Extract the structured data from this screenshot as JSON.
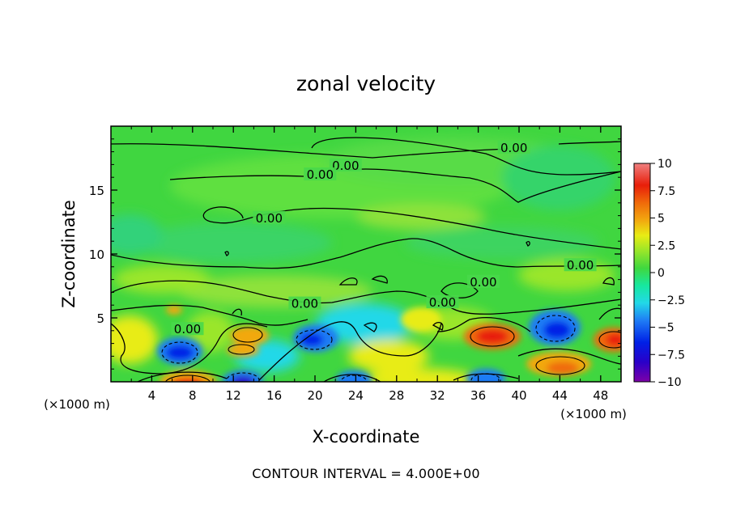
{
  "chart_data": {
    "type": "heatmap",
    "title": "zonal velocity",
    "xlabel": "X-coordinate",
    "ylabel": "Z-coordinate",
    "x_unit_label": "(×1000 m)",
    "x_unit_label_right": "(×1000 m)",
    "xlim": [
      0,
      50
    ],
    "ylim": [
      0,
      20
    ],
    "x_ticks": [
      "4",
      "8",
      "12",
      "16",
      "20",
      "24",
      "28",
      "32",
      "36",
      "40",
      "44",
      "48"
    ],
    "x_tick_values": [
      4,
      8,
      12,
      16,
      20,
      24,
      28,
      32,
      36,
      40,
      44,
      48
    ],
    "y_ticks": [
      "5",
      "10",
      "15"
    ],
    "y_tick_values": [
      5,
      10,
      15
    ],
    "colorbar": {
      "range": [
        -10,
        10
      ],
      "tick_labels": [
        "10",
        "7.5",
        "5",
        "2.5",
        "0",
        "−2.5",
        "−5",
        "−7.5",
        "−10"
      ],
      "tick_values": [
        10,
        7.5,
        5,
        2.5,
        0,
        -2.5,
        -5,
        -7.5,
        -10
      ],
      "colors": [
        "#7d00a8",
        "#2a00c8",
        "#0020e6",
        "#1f7cf5",
        "#22d8e8",
        "#17e8a0",
        "#3fd83f",
        "#9ae629",
        "#e8ec14",
        "#f2a80f",
        "#f06a0a",
        "#e81e0a",
        "#f08080"
      ]
    },
    "contour_labels": [
      "0.00",
      "0.00",
      "0.00",
      "0.00",
      "0.00",
      "0.00",
      "0.00",
      "0.00",
      "0.00"
    ],
    "footer": "CONTOUR INTERVAL = 4.000E+00",
    "features": [
      {
        "kind": "max",
        "x": 8,
        "z": 0.6,
        "value": 7.5
      },
      {
        "kind": "min",
        "x": 7,
        "z": 2.4,
        "value": -7
      },
      {
        "kind": "max",
        "x": 13.5,
        "z": 3.8,
        "value": 5
      },
      {
        "kind": "min",
        "x": 13,
        "z": 0.4,
        "value": -8
      },
      {
        "kind": "min",
        "x": 20,
        "z": 3.5,
        "value": -6
      },
      {
        "kind": "min",
        "x": 24,
        "z": 0.3,
        "value": -6
      },
      {
        "kind": "max",
        "x": 37,
        "z": 3.6,
        "value": 8
      },
      {
        "kind": "min",
        "x": 36,
        "z": 0.4,
        "value": -5
      },
      {
        "kind": "min",
        "x": 43,
        "z": 4.2,
        "value": -6
      },
      {
        "kind": "max",
        "x": 44,
        "z": 1.5,
        "value": 5
      },
      {
        "kind": "max",
        "x": 49,
        "z": 3.5,
        "value": 7
      }
    ]
  }
}
